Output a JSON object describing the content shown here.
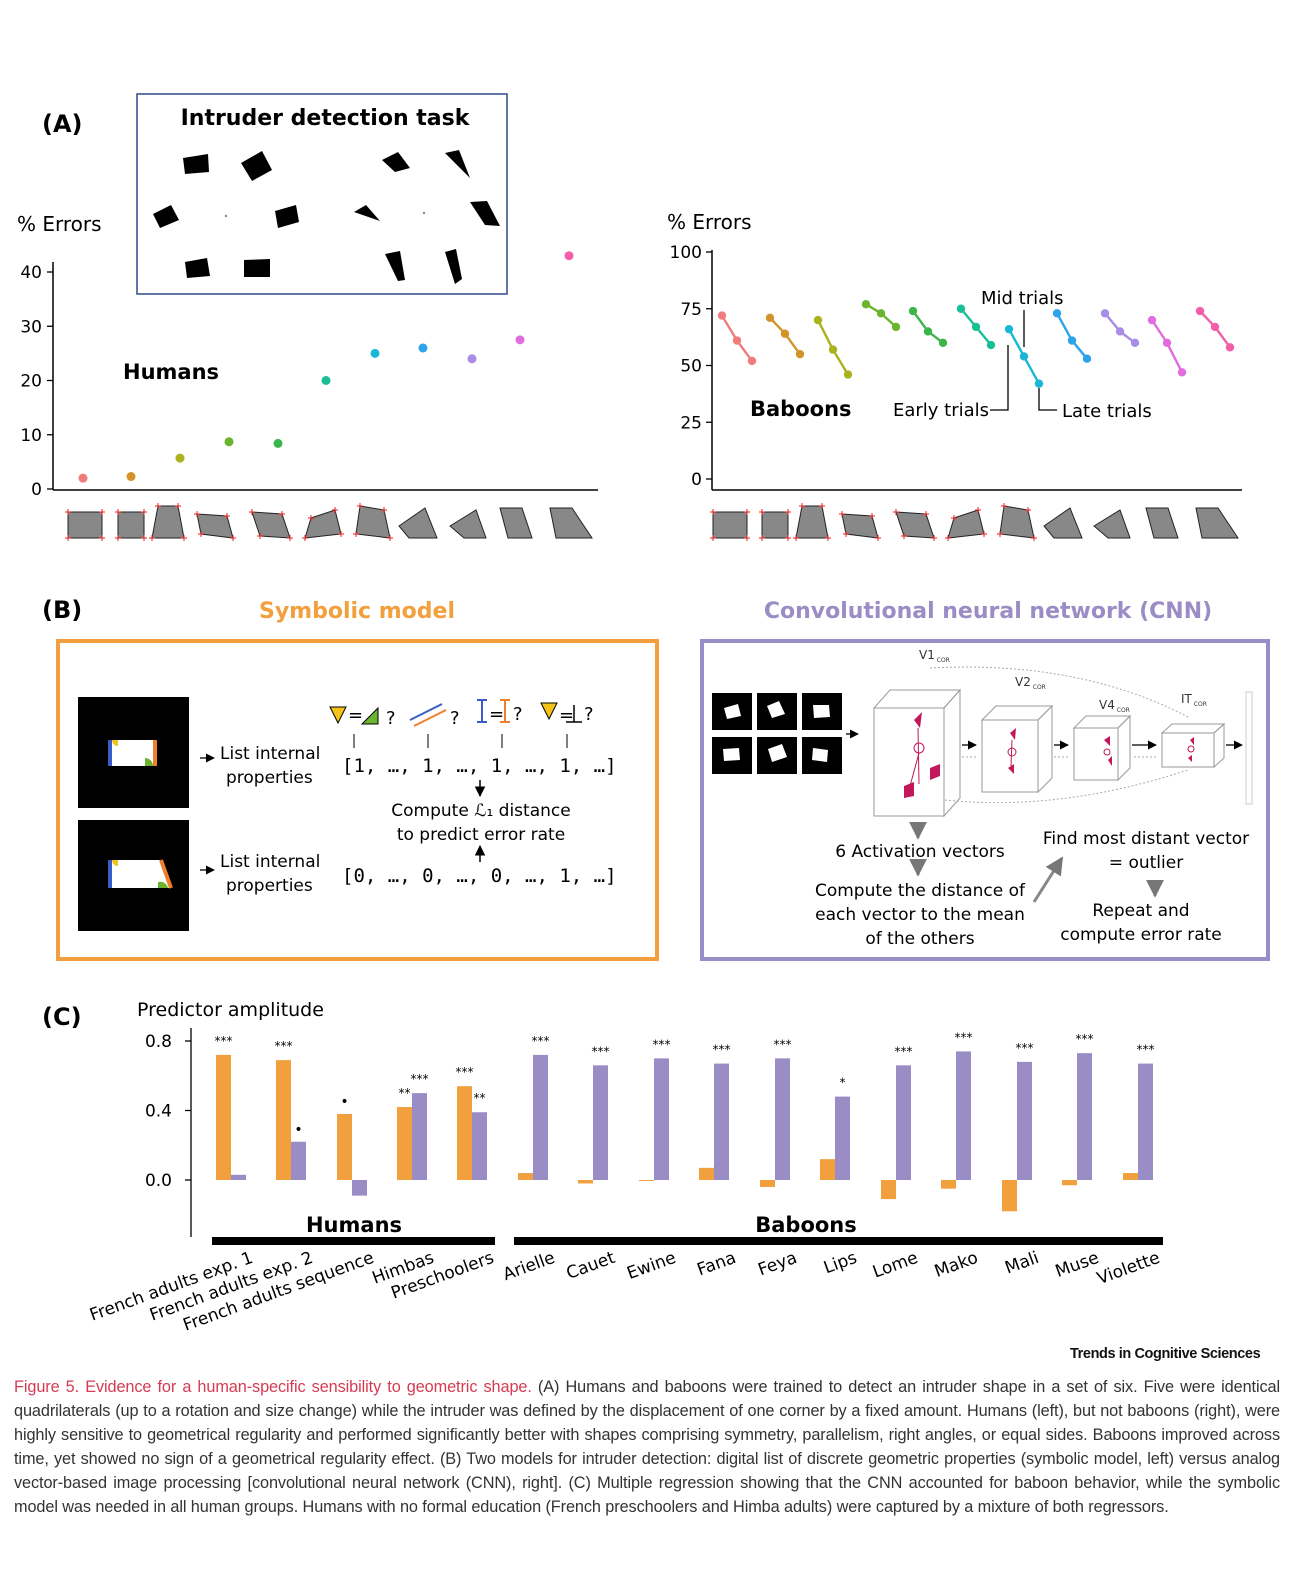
{
  "panelA": {
    "label": "(A)",
    "task_title": "Intruder detection task",
    "humans": {
      "ylabel": "% Errors",
      "group_label": "Humans",
      "yticks": [
        "0",
        "10",
        "20",
        "30",
        "40"
      ],
      "ylim": [
        0,
        45
      ],
      "points": [
        {
          "y": 2.0,
          "color": "#f07c7c"
        },
        {
          "y": 2.3,
          "color": "#d4922a"
        },
        {
          "y": 5.7,
          "color": "#aab21e"
        },
        {
          "y": 8.7,
          "color": "#6ab42e"
        },
        {
          "y": 8.4,
          "color": "#3cb54a"
        },
        {
          "y": 20.0,
          "color": "#1bbf96"
        },
        {
          "y": 25.0,
          "color": "#1ab6d6"
        },
        {
          "y": 26.0,
          "color": "#2ba4ec"
        },
        {
          "y": 24.0,
          "color": "#a98be8"
        },
        {
          "y": 27.5,
          "color": "#e36be0"
        },
        {
          "y": 43.0,
          "color": "#f25fa8"
        }
      ]
    },
    "baboons": {
      "ylabel": "% Errors",
      "group_label": "Baboons",
      "yticks": [
        "0",
        "25",
        "50",
        "75",
        "100"
      ],
      "ylim": [
        0,
        100
      ],
      "annotation_mid": "Mid trials",
      "annotation_early": "Early trials",
      "annotation_late": "Late trials",
      "series": [
        {
          "early": 72,
          "mid": 61,
          "late": 52,
          "color": "#f07c7c"
        },
        {
          "early": 71,
          "mid": 64,
          "late": 55,
          "color": "#d4922a"
        },
        {
          "early": 70,
          "mid": 57,
          "late": 46,
          "color": "#aab21e"
        },
        {
          "early": 77,
          "mid": 73,
          "late": 67,
          "color": "#6ab42e"
        },
        {
          "early": 74,
          "mid": 65,
          "late": 60,
          "color": "#3cb54a"
        },
        {
          "early": 75,
          "mid": 67,
          "late": 59,
          "color": "#1bbf96"
        },
        {
          "early": 66,
          "mid": 54,
          "late": 42,
          "color": "#1ab6d6"
        },
        {
          "early": 73,
          "mid": 61,
          "late": 53,
          "color": "#2ba4ec"
        },
        {
          "early": 73,
          "mid": 65,
          "late": 60,
          "color": "#a98be8"
        },
        {
          "early": 70,
          "mid": 60,
          "late": 47,
          "color": "#e36be0"
        },
        {
          "early": 74,
          "mid": 67,
          "late": 58,
          "color": "#f25fa8"
        }
      ]
    }
  },
  "panelB": {
    "label": "(B)",
    "symbolic_title": "Symbolic model",
    "cnn_title": "Convolutional neural network (CNN)",
    "symbolic_color": "#f2a03d",
    "cnn_color": "#9a8cc4",
    "list_props_1": "List internal",
    "list_props_2": "properties",
    "vector_top": "[1, …, 1, …, 1, …, 1, …]",
    "vector_bottom": "[0, …, 0, …, 0, …, 1, …]",
    "compute_1": "Compute ℒ₁ distance",
    "compute_2": "to predict error rate",
    "cnn_layers": [
      "V1",
      "V2",
      "V4",
      "IT"
    ],
    "cnn_sub": "COR",
    "activation": "6 Activation vectors",
    "distance_1": "Compute the distance of",
    "distance_2": "each vector to the mean",
    "distance_3": "of the others",
    "find_1": "Find most distant vector",
    "find_2": "= outlier",
    "repeat_1": "Repeat and",
    "repeat_2": "compute error rate"
  },
  "panelC": {
    "label": "(C)",
    "ylabel": "Predictor amplitude",
    "yticks": [
      "0.0",
      "0.4",
      "0.8"
    ],
    "ylim": [
      -0.2,
      0.8
    ],
    "humans_label": "Humans",
    "baboons_label": "Baboons",
    "colors": {
      "symbolic": "#f2a03d",
      "cnn": "#9a8cc4"
    },
    "groups": [
      {
        "name": "French adults exp. 1",
        "symbolic": 0.72,
        "cnn": 0.03,
        "sig_s": "***",
        "sig_c": ""
      },
      {
        "name": "French adults exp. 2",
        "symbolic": 0.69,
        "cnn": 0.22,
        "sig_s": "***",
        "sig_c": "•"
      },
      {
        "name": "French adults sequence",
        "symbolic": 0.38,
        "cnn": -0.09,
        "sig_s": "•",
        "sig_c": ""
      },
      {
        "name": "Himbas",
        "symbolic": 0.42,
        "cnn": 0.5,
        "sig_s": "**",
        "sig_c": "***"
      },
      {
        "name": "Preschoolers",
        "symbolic": 0.54,
        "cnn": 0.39,
        "sig_s": "***",
        "sig_c": "**"
      },
      {
        "name": "Arielle",
        "symbolic": 0.04,
        "cnn": 0.72,
        "sig_s": "",
        "sig_c": "***"
      },
      {
        "name": "Cauet",
        "symbolic": -0.02,
        "cnn": 0.66,
        "sig_s": "",
        "sig_c": "***"
      },
      {
        "name": "Ewine",
        "symbolic": -0.005,
        "cnn": 0.7,
        "sig_s": "",
        "sig_c": "***"
      },
      {
        "name": "Fana",
        "symbolic": 0.07,
        "cnn": 0.67,
        "sig_s": "",
        "sig_c": "***"
      },
      {
        "name": "Feya",
        "symbolic": -0.04,
        "cnn": 0.7,
        "sig_s": "",
        "sig_c": "***"
      },
      {
        "name": "Lips",
        "symbolic": 0.12,
        "cnn": 0.48,
        "sig_s": "",
        "sig_c": "*"
      },
      {
        "name": "Lome",
        "symbolic": -0.11,
        "cnn": 0.66,
        "sig_s": "",
        "sig_c": "***"
      },
      {
        "name": "Mako",
        "symbolic": -0.05,
        "cnn": 0.74,
        "sig_s": "",
        "sig_c": "***"
      },
      {
        "name": "Mali",
        "symbolic": -0.18,
        "cnn": 0.68,
        "sig_s": "",
        "sig_c": "***"
      },
      {
        "name": "Muse",
        "symbolic": -0.03,
        "cnn": 0.73,
        "sig_s": "",
        "sig_c": "***"
      },
      {
        "name": "Violette",
        "symbolic": 0.04,
        "cnn": 0.67,
        "sig_s": "",
        "sig_c": "***"
      }
    ]
  },
  "caption": {
    "title": "Figure 5. Evidence for a human-specific sensibility to geometric shape.",
    "body": "(A) Humans and baboons were trained to detect an intruder shape in a set of six. Five were identical quadrilaterals (up to a rotation and size change) while the intruder was defined by the displacement of one corner by a fixed amount. Humans (left), but not baboons (right), were highly sensitive to geometrical regularity and performed significantly better with shapes comprising symmetry, parallelism, right angles, or equal sides. Baboons improved across time, yet showed no sign of a geometrical regularity effect. (B) Two models for intruder detection: digital list of discrete geometric properties (symbolic model, left) versus analog vector-based image processing [convolutional neural network (CNN), right]. (C) Multiple regression showing that the CNN accounted for baboon behavior, while the symbolic model was needed in all human groups. Humans with no formal education (French preschoolers and Himba adults) were captured by a mixture of both regressors."
  },
  "journal": "Trends in Cognitive Sciences"
}
